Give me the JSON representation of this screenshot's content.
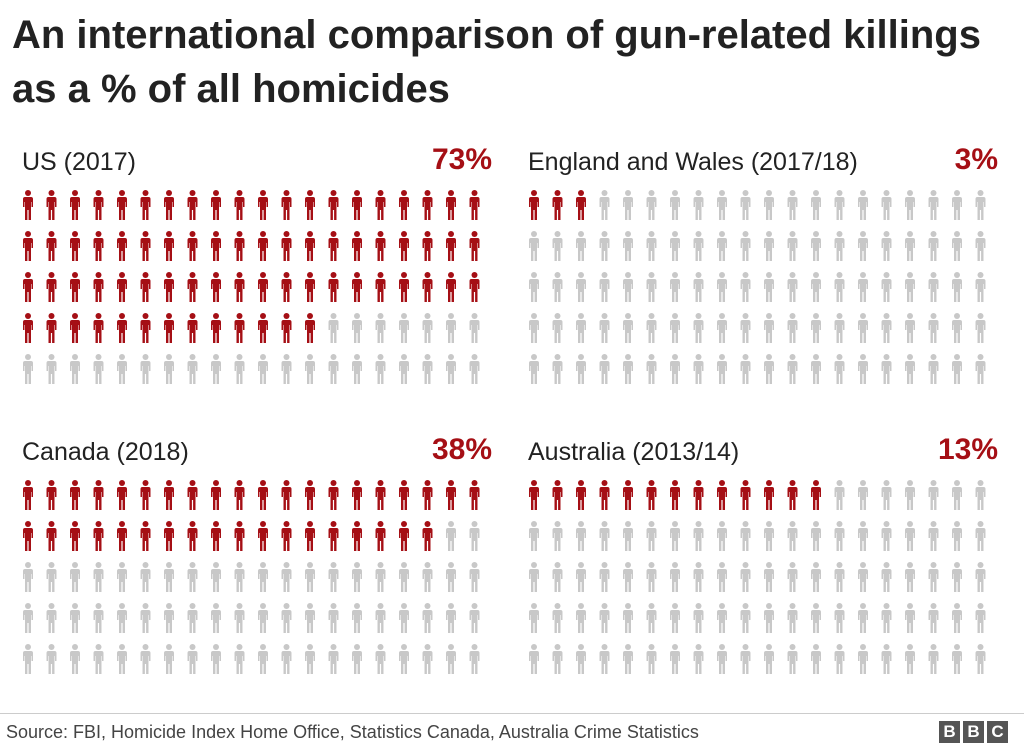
{
  "title": "An international comparison of gun-related killings as a % of all homicides",
  "colors": {
    "highlight": "#a50f15",
    "muted": "#c8c8c8"
  },
  "icon": "person-icon",
  "chart_data": {
    "type": "icon-array",
    "total_icons_per_panel": 100,
    "panels": [
      {
        "label": "US (2017)",
        "value": 73,
        "value_label": "73%"
      },
      {
        "label": "England and Wales (2017/18)",
        "value": 3,
        "value_label": "3%"
      },
      {
        "label": "Canada (2018)",
        "value": 38,
        "value_label": "38%"
      },
      {
        "label": "Australia (2013/14)",
        "value": 13,
        "value_label": "13%"
      }
    ]
  },
  "footer": {
    "source": "Source: FBI, Homicide Index Home Office, Statistics Canada, Australia Crime Statistics",
    "logo_letters": [
      "B",
      "B",
      "C"
    ]
  }
}
